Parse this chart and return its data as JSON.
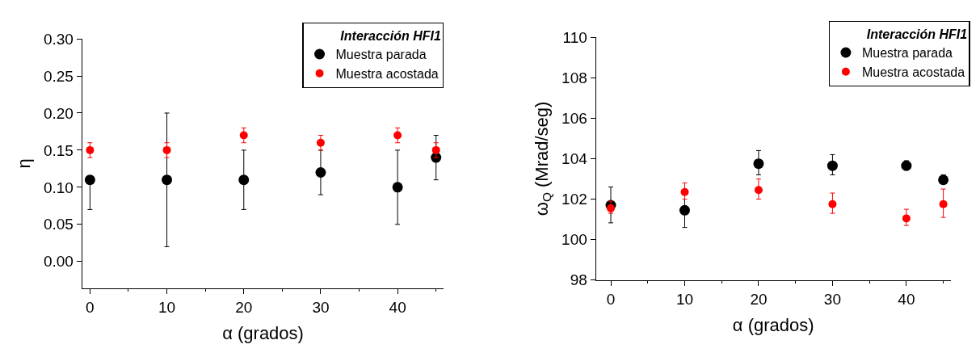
{
  "chart_data": [
    {
      "type": "scatter",
      "xlabel": "α (grados)",
      "ylabel": "η",
      "legend_title": "Interacción HFI1",
      "legend": "top right",
      "marker": "circle",
      "xlim": [
        -1,
        46
      ],
      "xticks": [
        0,
        10,
        20,
        30,
        40
      ],
      "ylim": [
        -0.036,
        0.3
      ],
      "yticks": [
        {
          "value": 0,
          "label": "0.00"
        },
        0.05,
        {
          "value": 0.1,
          "label": "0.10"
        },
        0.15,
        {
          "value": 0.2,
          "label": "0.20"
        },
        0.25,
        {
          "value": 0.3,
          "label": "0.30"
        }
      ],
      "x": [
        0,
        10,
        20,
        30,
        40,
        45
      ],
      "series": [
        {
          "name": "Muestra parada",
          "color": "#000000",
          "values": [
            0.11,
            0.11,
            0.11,
            0.12,
            0.1,
            0.14
          ],
          "errors": [
            [
              0.07,
              0.11
            ],
            [
              0.02,
              0.2
            ],
            [
              0.07,
              0.15
            ],
            [
              0.09,
              0.15
            ],
            [
              0.05,
              0.15
            ],
            [
              0.11,
              0.17
            ]
          ]
        },
        {
          "name": "Muestra acostada",
          "color": "#ff0000",
          "values": [
            0.15,
            0.15,
            0.17,
            0.16,
            0.17,
            0.15
          ],
          "errors": [
            0.01,
            0.01,
            0.01,
            0.01,
            0.01,
            0.01
          ]
        }
      ]
    },
    {
      "type": "scatter",
      "xlabel": "α (grados)",
      "ylabel": "ω$_{Q}$ (Mrad/seg)",
      "legend_title": "Interacción HFI1",
      "legend": "top right",
      "marker": "circle",
      "xlim": [
        -2,
        46
      ],
      "xticks": [
        0,
        10,
        20,
        30,
        40
      ],
      "ylim": [
        98,
        110
      ],
      "yticks": [
        98,
        100,
        102,
        104,
        106,
        108,
        110
      ],
      "x": [
        0,
        10,
        20,
        30,
        40,
        45
      ],
      "series": [
        {
          "name": "Muestra parada",
          "color": "#000000",
          "values": [
            101.7,
            101.45,
            103.75,
            103.65,
            103.65,
            102.95
          ],
          "errors": [
            [
              100.83,
              102.6
            ],
            [
              100.6,
              102.4
            ],
            [
              103.2,
              104.4
            ],
            [
              103.2,
              104.2
            ],
            [
              103.5,
              103.9
            ],
            [
              102.8,
              103.2
            ]
          ]
        },
        {
          "name": "Muestra acostada",
          "color": "#ff0000",
          "values": [
            101.55,
            102.35,
            102.45,
            101.75,
            101.05,
            101.75
          ],
          "errors": [
            [
              101.3,
              101.9
            ],
            [
              102.0,
              102.8
            ],
            [
              102.0,
              103.0
            ],
            [
              101.3,
              102.3
            ],
            [
              100.7,
              101.5
            ],
            [
              101.1,
              102.5
            ]
          ]
        }
      ]
    }
  ]
}
